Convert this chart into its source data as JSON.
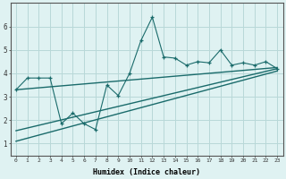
{
  "x": [
    0,
    1,
    2,
    3,
    4,
    5,
    6,
    7,
    8,
    9,
    10,
    11,
    12,
    13,
    14,
    15,
    16,
    17,
    18,
    19,
    20,
    21,
    22,
    23
  ],
  "y_main": [
    3.3,
    3.8,
    3.8,
    3.8,
    1.85,
    2.3,
    1.85,
    1.6,
    3.5,
    3.05,
    4.0,
    5.4,
    6.4,
    4.7,
    4.65,
    4.35,
    4.5,
    4.45,
    5.0,
    4.35,
    4.45,
    4.35,
    4.5,
    4.2
  ],
  "bg_color": "#dff2f2",
  "grid_color": "#b8d8d8",
  "line_color": "#1a6b6b",
  "xlabel": "Humidex (Indice chaleur)",
  "ylim": [
    0.5,
    7.0
  ],
  "xlim": [
    -0.5,
    23.5
  ],
  "yticks": [
    1,
    2,
    3,
    4,
    5,
    6
  ],
  "xticks": [
    0,
    1,
    2,
    3,
    4,
    5,
    6,
    7,
    8,
    9,
    10,
    11,
    12,
    13,
    14,
    15,
    16,
    17,
    18,
    19,
    20,
    21,
    22,
    23
  ],
  "flat_line_y0": 3.3,
  "flat_line_y1": 4.25,
  "slope_line1_y0": 1.55,
  "slope_line1_y1": 4.2,
  "slope_line2_y0": 1.1,
  "slope_line2_y1": 4.1
}
